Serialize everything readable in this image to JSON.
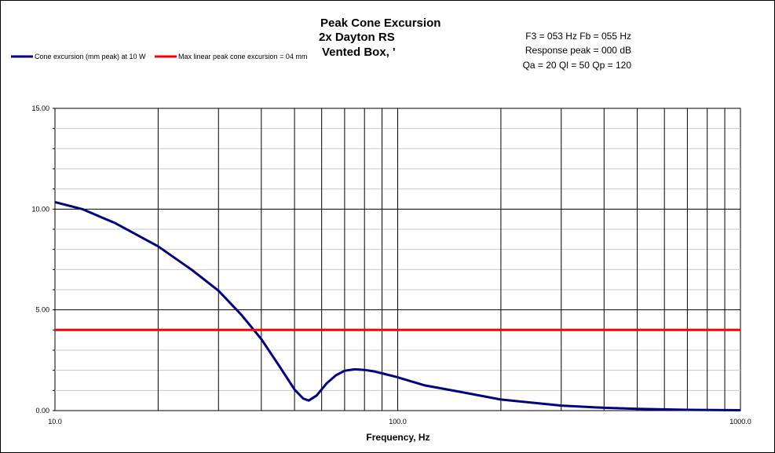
{
  "chart_data": {
    "type": "line",
    "title_lines": [
      "Peak Cone Excursion",
      "2x Dayton RS",
      "Vented Box, '"
    ],
    "info_lines": [
      "F3 = 053 Hz  Fb = 055 Hz",
      "Response  peak = 000 dB",
      "Qa = 20  Ql = 50  Qp = 120"
    ],
    "xlabel": "Frequency, Hz",
    "ylabel": "",
    "x_scale": "log",
    "xlim": [
      10,
      1000
    ],
    "ylim": [
      0,
      15
    ],
    "x_tick_labels": [
      "10.0",
      "100.0",
      "1000.0"
    ],
    "y_tick_labels": [
      "0.00",
      "5.00",
      "10.00",
      "15.00"
    ],
    "grid": true,
    "legend_position": "top-left",
    "series": [
      {
        "name": "Cone excursion (mm peak) at 10 W",
        "color": "#000080",
        "x": [
          10,
          12,
          15,
          20,
          25,
          30,
          35,
          40,
          45,
          50,
          53,
          55,
          58,
          62,
          66,
          70,
          75,
          80,
          85,
          90,
          100,
          120,
          150,
          200,
          300,
          400,
          500,
          700,
          1000
        ],
        "y": [
          10.35,
          10.0,
          9.3,
          8.15,
          7.0,
          5.95,
          4.75,
          3.55,
          2.25,
          1.05,
          0.6,
          0.5,
          0.75,
          1.35,
          1.75,
          1.98,
          2.05,
          2.02,
          1.95,
          1.85,
          1.65,
          1.25,
          0.95,
          0.55,
          0.25,
          0.14,
          0.09,
          0.04,
          0.02
        ]
      },
      {
        "name": "Max linear peak cone excursion = 04 mm",
        "color": "#ff0000",
        "x": [
          10,
          1000
        ],
        "y": [
          4,
          4
        ]
      }
    ]
  }
}
